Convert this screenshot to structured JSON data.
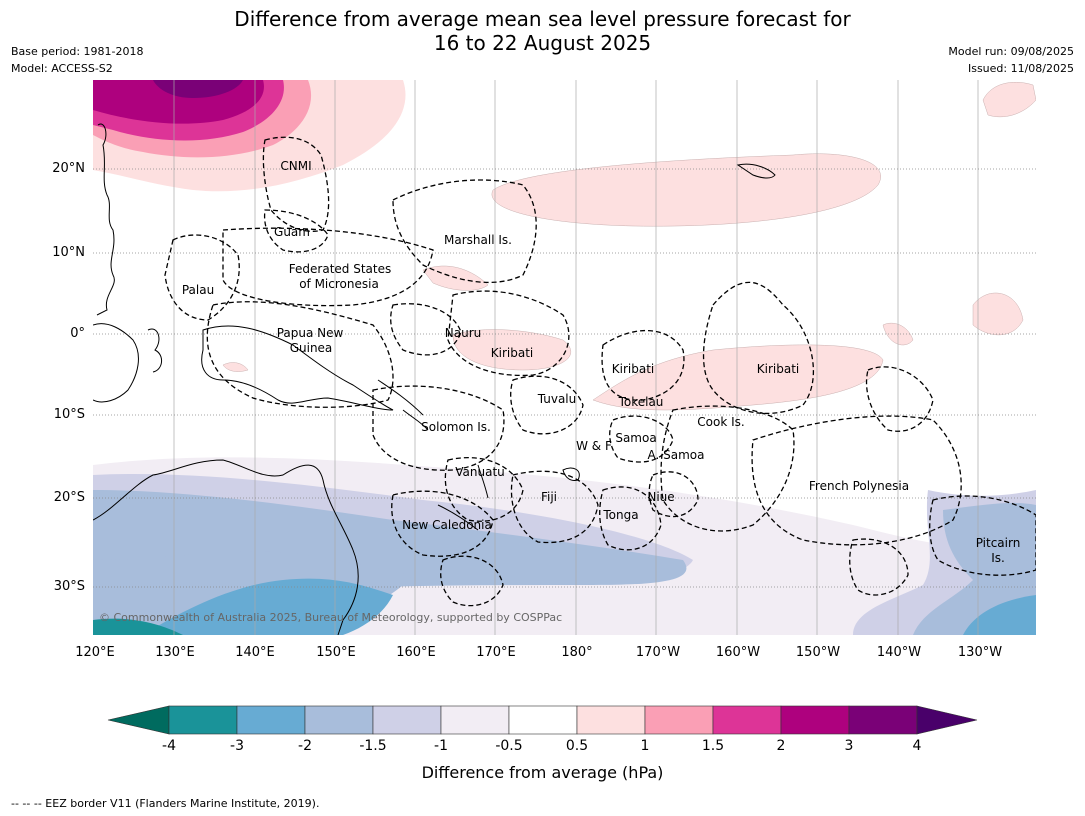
{
  "title_line1": "Difference from average mean sea level pressure forecast for",
  "title_line2": "16 to 22 August 2025",
  "meta_left": [
    "Base period: 1981-2018",
    "Model: ACCESS-S2"
  ],
  "meta_right": [
    "Model run: 09/08/2025",
    "Issued: 11/08/2025"
  ],
  "lat_labels": [
    "20°N",
    "10°N",
    "0°",
    "10°S",
    "20°S",
    "30°S"
  ],
  "lon_labels": [
    "120°E",
    "130°E",
    "140°E",
    "150°E",
    "160°E",
    "170°E",
    "180°",
    "170°W",
    "160°W",
    "150°W",
    "140°W",
    "130°W"
  ],
  "regions": [
    {
      "name": "CNMI"
    },
    {
      "name": "Guam"
    },
    {
      "name": "Marshall Is."
    },
    {
      "name": "Palau"
    },
    {
      "name": "Federated States"
    },
    {
      "name": "of Micronesia"
    },
    {
      "name": "Papua New"
    },
    {
      "name": "Guinea"
    },
    {
      "name": "Nauru"
    },
    {
      "name": "Kiribati"
    },
    {
      "name": "Kiribati"
    },
    {
      "name": "Kiribati"
    },
    {
      "name": "Tuvalu"
    },
    {
      "name": "Tokelau"
    },
    {
      "name": "Cook Is."
    },
    {
      "name": "Solomon Is."
    },
    {
      "name": "W & F"
    },
    {
      "name": "Samoa"
    },
    {
      "name": "A. Samoa"
    },
    {
      "name": "Vanuatu"
    },
    {
      "name": "Fiji"
    },
    {
      "name": "Niue"
    },
    {
      "name": "Tonga"
    },
    {
      "name": "French Polynesia"
    },
    {
      "name": "New Caledonia"
    },
    {
      "name": "Pitcairn"
    },
    {
      "name": "Is."
    }
  ],
  "copyright": "© Commonwealth of Australia 2025, Bureau of Meteorology, supported by COSPPac",
  "colorbar": {
    "ticks": [
      "-4",
      "-3",
      "-2",
      "-1.5",
      "-1",
      "-0.5",
      "0.5",
      "1",
      "1.5",
      "2",
      "3",
      "4"
    ],
    "colors": [
      "#1a9399",
      "#67abd3",
      "#a8bddb",
      "#cfd0e7",
      "#f2edf4",
      "#ffffff",
      "#fde0e0",
      "#fa9fb5",
      "#dd3497",
      "#ae017e",
      "#7a0177"
    ],
    "under_color": "#006b5f",
    "over_color": "#49006a",
    "title": "Difference from average (hPa)"
  },
  "footnote": "-- -- -- EEZ border V11 (Flanders Marine Institute, 2019)."
}
